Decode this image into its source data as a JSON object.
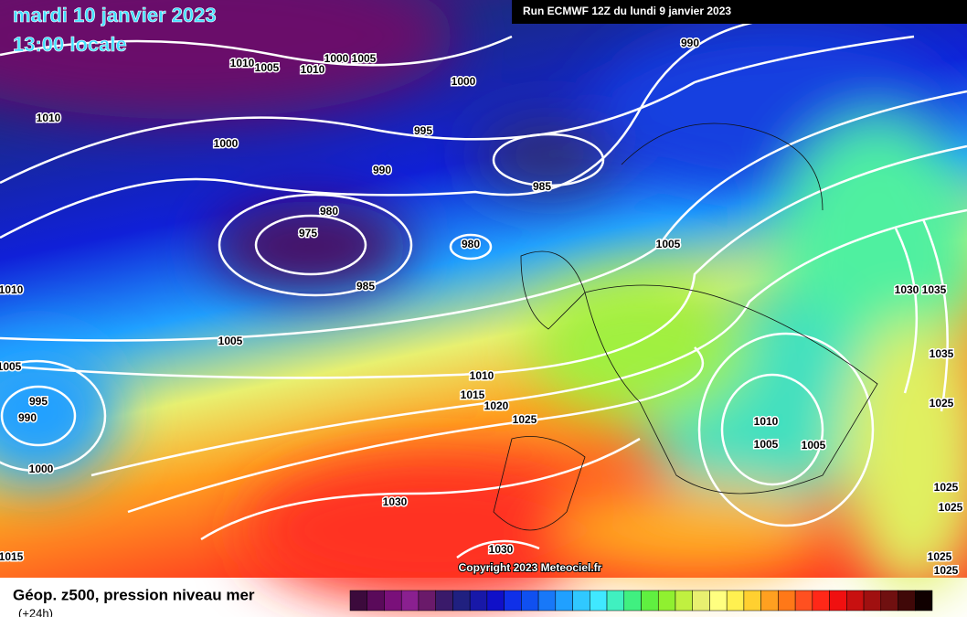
{
  "header": {
    "date": "mardi 10 janvier 2023",
    "time": "13:00 locale",
    "run": "Run ECMWF 12Z du lundi 9 janvier 2023"
  },
  "copyright": "Copyright 2023 Meteociel.fr",
  "legend": {
    "title": "Géop. z500, pression niveau mer",
    "subtitle": "(+24h)",
    "colors": [
      "#3c0a3c",
      "#5a0a5a",
      "#7a107a",
      "#8a2090",
      "#6a1a6a",
      "#3a1a6a",
      "#202080",
      "#1818a8",
      "#1010c8",
      "#1030e8",
      "#1050f0",
      "#1878f8",
      "#20a0ff",
      "#30c8ff",
      "#40e8ff",
      "#40f0c0",
      "#40f080",
      "#60f040",
      "#90f030",
      "#c0f040",
      "#e8f070",
      "#ffff80",
      "#fff050",
      "#ffd030",
      "#ffa020",
      "#ff7818",
      "#ff5020",
      "#ff2818",
      "#f01010",
      "#c81010",
      "#a01010",
      "#701010",
      "#400808",
      "#100000"
    ]
  },
  "isobar_labels": [
    "1010",
    "1005",
    "1010",
    "1000",
    "1005",
    "990",
    "1000",
    "1010",
    "1000",
    "995",
    "990",
    "985",
    "980",
    "975",
    "980",
    "1005",
    "985",
    "1010",
    "1005",
    "1030",
    "1035",
    "1035",
    "1005",
    "1010",
    "1015",
    "995",
    "1020",
    "1025",
    "990",
    "1010",
    "1025",
    "1005",
    "1005",
    "1000",
    "1025",
    "1030",
    "1025",
    "1030",
    "1015",
    "1025",
    "1025"
  ]
}
